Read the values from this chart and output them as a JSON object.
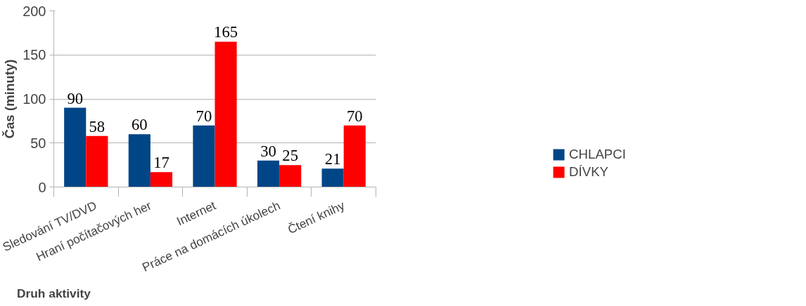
{
  "chart_data": {
    "type": "bar",
    "ylabel": "Čas (minuty)",
    "xlabel": "Druh aktivity",
    "categories": [
      "Sledování TV/DVD",
      "Hraní počítačových her",
      "Internet",
      "Práce na domácích úkolech",
      "Čtení knihy"
    ],
    "series": [
      {
        "name": "CHLAPCI",
        "color": "#004586",
        "values": [
          90,
          60,
          70,
          30,
          21
        ]
      },
      {
        "name": "DÍVKY",
        "color": "#ff0000",
        "values": [
          58,
          17,
          165,
          25,
          70
        ]
      }
    ],
    "ylim": [
      0,
      200
    ],
    "yticks": [
      0,
      50,
      100,
      150,
      200
    ],
    "grid": "y",
    "legend": "bottom right",
    "data_labels": true
  }
}
